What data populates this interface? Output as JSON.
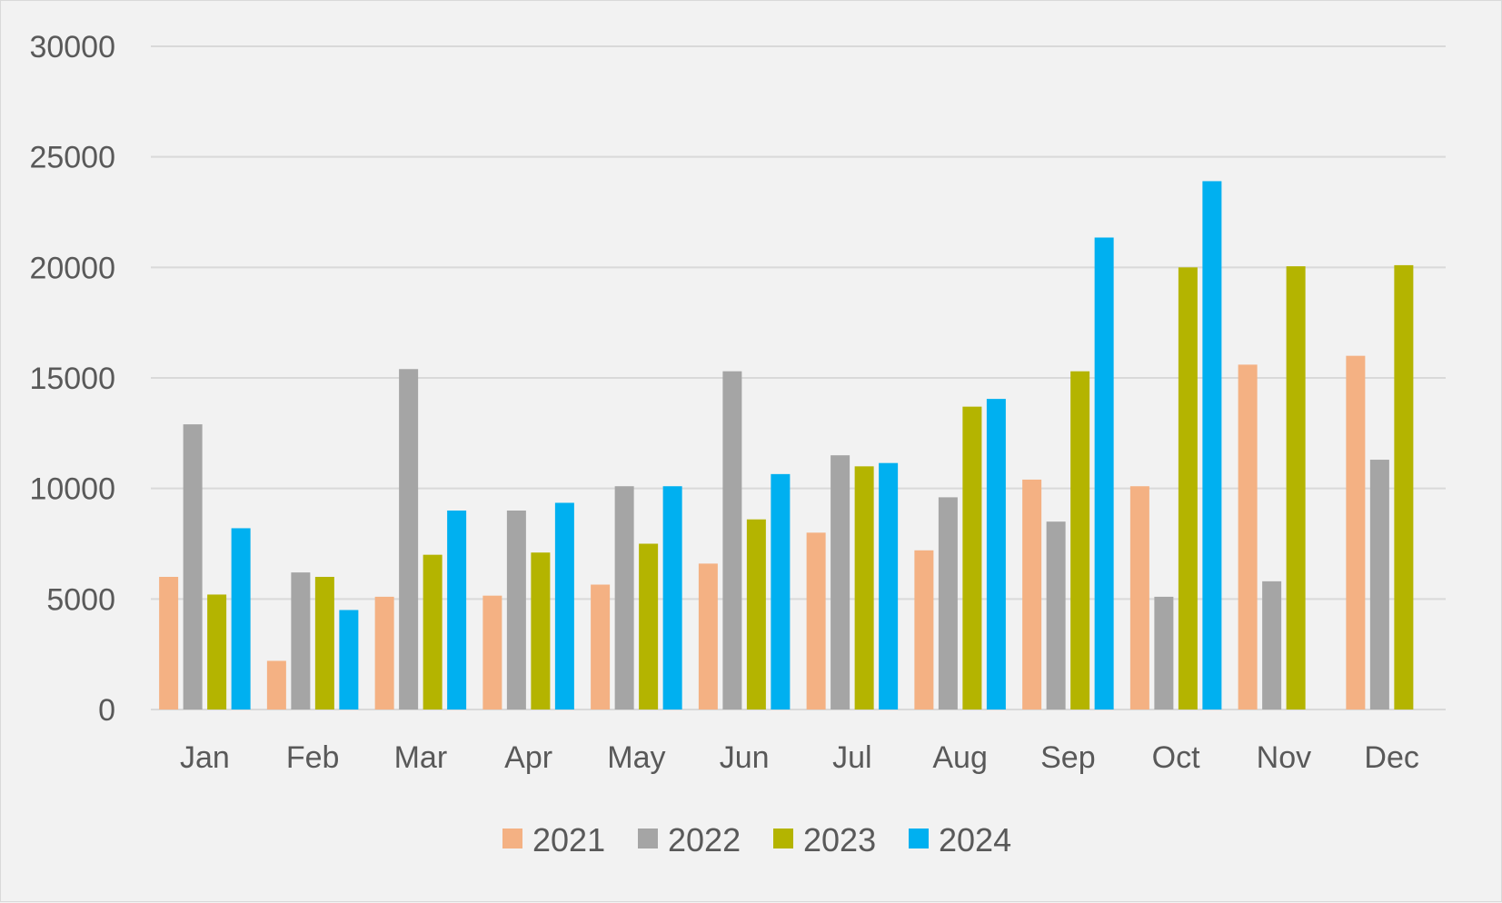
{
  "chart_data": {
    "type": "bar",
    "categories": [
      "Jan",
      "Feb",
      "Mar",
      "Apr",
      "May",
      "Jun",
      "Jul",
      "Aug",
      "Sep",
      "Oct",
      "Nov",
      "Dec"
    ],
    "series": [
      {
        "name": "2021",
        "color": "#f4b183",
        "values": [
          6000,
          2200,
          5100,
          5150,
          5650,
          6600,
          8000,
          7200,
          10400,
          10100,
          15600,
          16000
        ]
      },
      {
        "name": "2022",
        "color": "#a5a5a5",
        "values": [
          12900,
          6200,
          15400,
          9000,
          10100,
          15300,
          11500,
          9600,
          8500,
          5100,
          5800,
          11300
        ]
      },
      {
        "name": "2023",
        "color": "#b4b400",
        "values": [
          5200,
          6000,
          7000,
          7100,
          7500,
          8600,
          11000,
          13700,
          15300,
          20000,
          20050,
          20100
        ]
      },
      {
        "name": "2024",
        "color": "#00b0f0",
        "values": [
          8200,
          4500,
          9000,
          9350,
          10100,
          10650,
          11150,
          14050,
          21350,
          23900,
          null,
          null
        ]
      }
    ],
    "yticks": [
      "0",
      "5000",
      "10000",
      "15000",
      "20000",
      "25000",
      "30000"
    ],
    "ylim": [
      0,
      30000
    ],
    "grid": true,
    "legend_position": "bottom",
    "title": "",
    "xlabel": "",
    "ylabel": ""
  }
}
